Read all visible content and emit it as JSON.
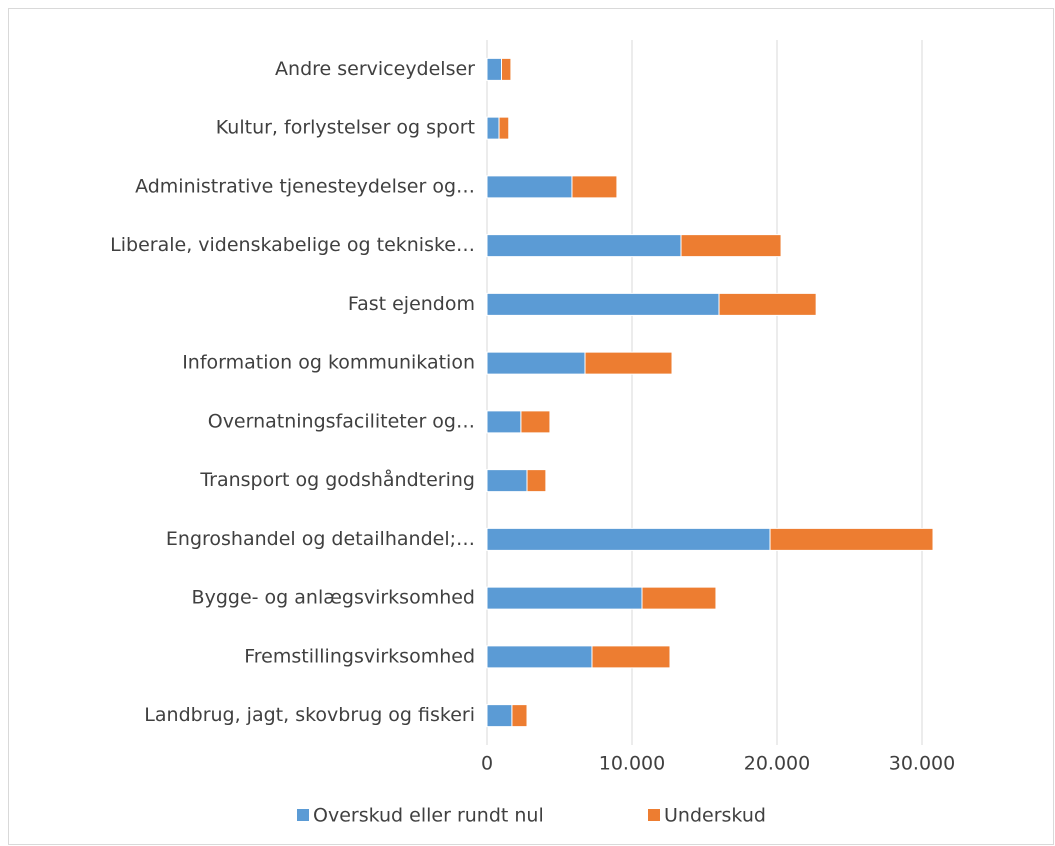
{
  "chart_data": {
    "type": "stacked_barh",
    "categories": [
      "Andre serviceydelser",
      "Kultur, forlystelser og sport",
      "Administrative tjenesteydelser og…",
      "Liberale, videnskabelige og tekniske…",
      "Fast ejendom",
      "Information og kommunikation",
      "Overnatningsfaciliteter og…",
      "Transport og godshåndtering",
      "Engroshandel og detailhandel;…",
      "Bygge- og anlægsvirksomhed",
      "Fremstillingsvirksomhed",
      "Landbrug, jagt, skovbrug og fiskeri"
    ],
    "series": [
      {
        "name": "Overskud eller rundt nul",
        "color": "#5b9bd5",
        "values": [
          1000,
          830,
          5860,
          13380,
          16000,
          6760,
          2340,
          2760,
          19520,
          10690,
          7240,
          1720
        ]
      },
      {
        "name": "Underskud",
        "color": "#ed7d31",
        "values": [
          650,
          670,
          3100,
          6900,
          6700,
          6000,
          2000,
          1300,
          11240,
          5100,
          5380,
          1040
        ]
      }
    ],
    "xlim": [
      0,
      35000
    ],
    "xticks": [
      0,
      {
        "value": 10000,
        "label": "10.000"
      },
      {
        "value": 20000,
        "label": "20.000"
      },
      {
        "value": 30000,
        "label": "30.000"
      }
    ],
    "grid": true,
    "legend": "bottom"
  }
}
